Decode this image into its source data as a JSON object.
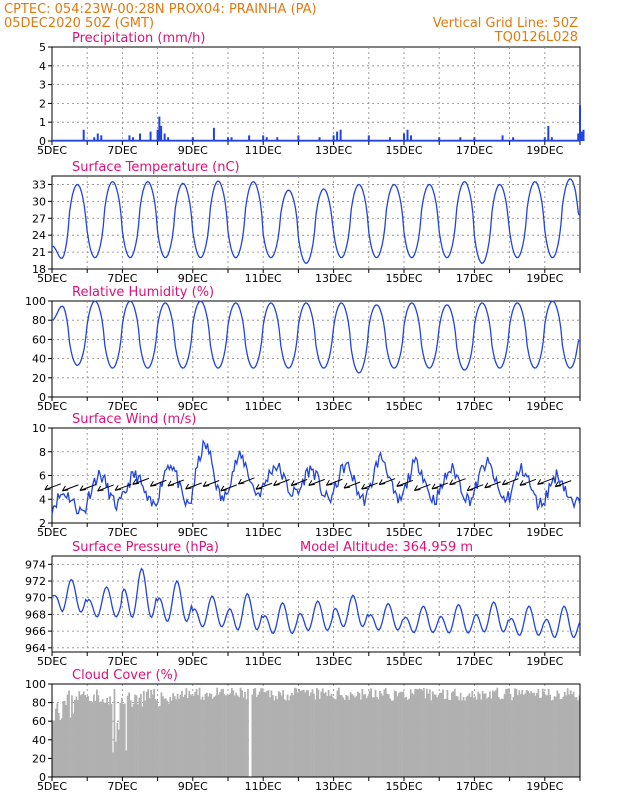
{
  "header": {
    "line1": "CPTEC:  054:23W-00:28N  PROX04: PRAINHA (PA)",
    "line2": "05DEC2020 50Z (GMT)",
    "grid_note": "Vertical Grid Line: 50Z",
    "code": "TQ0126L028"
  },
  "colors": {
    "header": "#e07a10",
    "title": "#e0107a",
    "line": "#2244dd",
    "cloud": "#b0b0b0",
    "grid": "#888888"
  },
  "x_ticks": [
    "5DEC",
    "7DEC",
    "9DEC",
    "11DEC",
    "13DEC",
    "15DEC",
    "17DEC",
    "19DEC"
  ],
  "chart_data": [
    {
      "type": "bar",
      "title": "Precipitation (mm/h)",
      "x_unit": "days since 5DEC 00Z",
      "ylim": [
        0,
        5
      ],
      "yticks": [
        0,
        1,
        2,
        3,
        4,
        5
      ],
      "grid": true,
      "x": [
        0.9,
        1.2,
        1.3,
        1.4,
        2.2,
        2.3,
        2.5,
        2.8,
        3.0,
        3.05,
        3.1,
        3.2,
        3.3,
        4.0,
        4.6,
        5.0,
        5.1,
        5.6,
        6.0,
        6.1,
        6.4,
        7.0,
        7.6,
        8.0,
        8.1,
        8.2,
        9.0,
        9.6,
        10.0,
        10.1,
        10.2,
        11.0,
        11.6,
        12.0,
        12.8,
        13.1,
        14.0,
        14.2,
        14.1,
        14.95,
        15.0,
        15.05,
        15.1
      ],
      "values": [
        0.6,
        0.2,
        0.4,
        0.3,
        0.3,
        0.2,
        0.4,
        0.5,
        0.6,
        1.3,
        0.8,
        0.4,
        0.2,
        0.2,
        0.7,
        0.2,
        0.2,
        0.3,
        0.3,
        0.2,
        0.2,
        0.3,
        0.2,
        0.3,
        0.5,
        0.6,
        0.3,
        0.2,
        0.4,
        0.6,
        0.3,
        0.2,
        0.2,
        0.2,
        0.3,
        0.2,
        0.2,
        0.2,
        0.8,
        0.4,
        1.9,
        0.5,
        0.6
      ]
    },
    {
      "type": "line",
      "title": "Surface Temperature (nC)",
      "x_unit": "days since 5DEC 00Z",
      "ylim": [
        18,
        34.5
      ],
      "yticks": [
        18,
        21,
        24,
        27,
        30,
        33
      ],
      "grid": true,
      "daily_min": [
        19,
        20,
        20,
        20,
        20,
        20,
        20,
        19,
        20,
        20,
        20,
        20,
        19,
        20,
        20
      ],
      "daily_max": [
        33,
        33.5,
        33.5,
        33.2,
        33.6,
        33.5,
        32,
        32.2,
        33,
        33,
        33,
        33.5,
        33,
        33.5,
        34
      ],
      "start_value": 22,
      "end_value": 27.5
    },
    {
      "type": "line",
      "title": "Relative Humidity (%)",
      "x_unit": "days since 5DEC 00Z",
      "ylim": [
        0,
        100
      ],
      "yticks": [
        0,
        20,
        40,
        60,
        80,
        100
      ],
      "grid": true,
      "daily_min": [
        33,
        30,
        30,
        30,
        30,
        30,
        30,
        30,
        25,
        30,
        30,
        28,
        30,
        30,
        30
      ],
      "daily_max": [
        100,
        100,
        100,
        98,
        100,
        98,
        98,
        98,
        98,
        96,
        98,
        96,
        98,
        98,
        100
      ],
      "start_value": 80,
      "end_value": 58
    },
    {
      "type": "line",
      "title": "Surface Wind (m/s)",
      "x_unit": "days since 5DEC 00Z",
      "ylim": [
        2,
        10
      ],
      "yticks": [
        2,
        4,
        6,
        8,
        10
      ],
      "grid": true,
      "wind_speed_daily_min": [
        3,
        3.5,
        3.5,
        3.5,
        4,
        4.5,
        4.5,
        4,
        4,
        3.8,
        4,
        4,
        4,
        3.6,
        3.5
      ],
      "wind_speed_daily_max": [
        4.5,
        6,
        6,
        7,
        8.5,
        7.5,
        6.8,
        6.5,
        6.8,
        7.5,
        7,
        6.5,
        7,
        6.5,
        6
      ],
      "wind_vector_days": [
        0.25,
        0.75,
        1.25,
        1.75,
        2.25,
        2.75,
        3.25,
        3.75,
        4.25,
        4.75,
        5.25,
        5.75,
        6.25,
        6.75,
        7.25,
        7.75,
        8.25,
        8.75,
        9.25,
        9.75,
        10.25,
        10.75,
        11.25,
        11.75,
        12.25,
        12.75,
        13.25,
        13.75,
        14.25,
        14.75
      ],
      "wind_vector_dir": "from east-northeast"
    },
    {
      "type": "line",
      "title": "Surface Pressure (hPa)",
      "subtitle": "Model Altitude: 364.959  m",
      "x_unit": "days since 5DEC 00Z",
      "ylim": [
        963.5,
        975
      ],
      "yticks": [
        964,
        966,
        968,
        970,
        972,
        974
      ],
      "grid": true,
      "daily_max": [
        972.2,
        971.3,
        973.5,
        972.0,
        970.2,
        970.5,
        969.4,
        969.6,
        970.3,
        969.3,
        969.0,
        969.2,
        969.5,
        969.0,
        969.0
      ],
      "daily_min": [
        967.5,
        967.0,
        966.5,
        966.2,
        965.8,
        965.3,
        965.0,
        965.4,
        965.8,
        965.5,
        965.2,
        965.1,
        965.2,
        964.8,
        964.5
      ],
      "start_value": 970.2,
      "end_value": 967.5
    },
    {
      "type": "bar",
      "title": "Cloud Cover (%)",
      "x_unit": "days since 5DEC 00Z",
      "ylim": [
        0,
        100
      ],
      "yticks": [
        0,
        20,
        40,
        60,
        80,
        100
      ],
      "grid": true,
      "pattern": "mostly 80-95% with dips near 5.5-6.8DEC (to ~20%) and a gap near 10.6DEC"
    }
  ]
}
